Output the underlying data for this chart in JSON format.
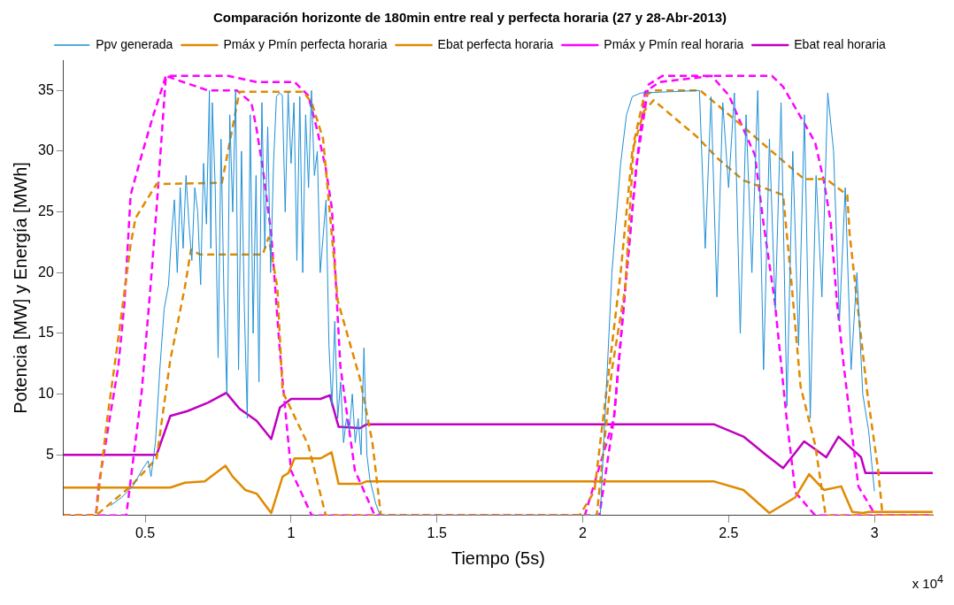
{
  "chart_data": {
    "type": "line",
    "title": "Comparación horizonte de 180min entre real y perfecta horaria (27 y 28-Abr-2013)",
    "xlabel": "Tiempo (5s)",
    "ylabel": "Potencia [MW] y Energía [MWh]",
    "annotations": [
      "x 10$^{4}$"
    ],
    "xlim": [
      0.22,
      3.2
    ],
    "ylim": [
      0,
      37.5
    ],
    "xticks": [
      0.5,
      1,
      1.5,
      2,
      2.5,
      3
    ],
    "yticks": [
      5,
      10,
      15,
      20,
      25,
      30,
      35
    ],
    "grid": false,
    "legend": "top",
    "marker": "none",
    "series": [
      {
        "name": "Ppv generada",
        "color": "#1f8fd6",
        "line_style": "solid",
        "x": [
          0.38,
          0.42,
          0.46,
          0.49,
          0.51,
          0.52,
          0.535,
          0.55,
          0.565,
          0.58,
          0.59,
          0.6,
          0.61,
          0.62,
          0.63,
          0.64,
          0.65,
          0.66,
          0.67,
          0.68,
          0.69,
          0.7,
          0.71,
          0.72,
          0.725,
          0.73,
          0.74,
          0.75,
          0.76,
          0.77,
          0.78,
          0.79,
          0.8,
          0.81,
          0.82,
          0.83,
          0.84,
          0.85,
          0.86,
          0.87,
          0.88,
          0.89,
          0.9,
          0.91,
          0.92,
          0.93,
          0.94,
          0.95,
          0.96,
          0.97,
          0.98,
          0.99,
          1.0,
          1.01,
          1.02,
          1.03,
          1.04,
          1.05,
          1.06,
          1.07,
          1.08,
          1.09,
          1.1,
          1.12,
          1.13,
          1.14,
          1.15,
          1.16,
          1.17,
          1.18,
          1.19,
          1.2,
          1.21,
          1.22,
          1.23,
          1.24,
          1.25,
          1.26,
          1.27,
          1.29,
          1.305,
          2.06,
          2.08,
          2.1,
          2.13,
          2.15,
          2.17,
          2.2,
          2.3,
          2.4,
          2.42,
          2.44,
          2.46,
          2.48,
          2.5,
          2.52,
          2.54,
          2.56,
          2.58,
          2.6,
          2.62,
          2.64,
          2.66,
          2.68,
          2.7,
          2.72,
          2.74,
          2.76,
          2.78,
          2.8,
          2.82,
          2.84,
          2.86,
          2.88,
          2.9,
          2.92,
          2.94,
          2.96,
          2.98,
          3.0
        ],
        "values": [
          0.8,
          1.5,
          2.5,
          3.8,
          4.5,
          3.2,
          6,
          12,
          17,
          19,
          23,
          26,
          20,
          27,
          22,
          28,
          24,
          21,
          27,
          25,
          19,
          29,
          24,
          35,
          22,
          34,
          27,
          13,
          31,
          18,
          10,
          33,
          25,
          35,
          12,
          30,
          17,
          8,
          33,
          15,
          28,
          11,
          34,
          22,
          32,
          20,
          29,
          34.5,
          34.8,
          34.6,
          25,
          34.9,
          29,
          34,
          21,
          34.5,
          20,
          33,
          27,
          35,
          28,
          30,
          20,
          26,
          14,
          9,
          16,
          8,
          11,
          6,
          8,
          7,
          10,
          6,
          8,
          5,
          13.8,
          5,
          3,
          1,
          0,
          0,
          10,
          20,
          29,
          33,
          34.5,
          34.8,
          34.9,
          35,
          22,
          34.5,
          18,
          34,
          27,
          34.8,
          15,
          33,
          20,
          35,
          12,
          31,
          17,
          34,
          9,
          30,
          14,
          33,
          8,
          28,
          18,
          34.8,
          30,
          16,
          27,
          12,
          20,
          10,
          7,
          2
        ]
      },
      {
        "name": "Pmáx y Pmín perfecta horaria",
        "color": "#e08a00",
        "line_style": "dashed",
        "x": [
          0.22,
          0.331,
          0.37,
          0.41,
          0.45,
          0.467,
          0.539,
          0.763,
          0.823,
          1.042,
          1.071,
          1.11,
          1.16,
          1.237,
          1.279,
          1.308,
          2.048,
          2.1,
          2.146,
          2.175,
          2.21,
          2.243,
          2.403,
          2.551,
          2.759,
          2.835,
          2.907,
          2.915,
          2.945,
          2.975,
          3.013,
          3.028,
          3.2
        ],
        "values": [
          0,
          0,
          8,
          15,
          22.3,
          24.5,
          27.3,
          27.4,
          34.9,
          34.9,
          34,
          31,
          17.7,
          11.2,
          6,
          0,
          0,
          12,
          18.8,
          30.7,
          34.5,
          35,
          35,
          32,
          27.7,
          27.7,
          26.4,
          23.2,
          16.7,
          10.2,
          3.7,
          0,
          0
        ]
      },
      {
        "color": "#e08a00",
        "line_style": "dashed",
        "x": [
          0.22,
          0.331,
          0.45,
          0.539,
          0.586,
          0.636,
          0.657,
          0.687,
          0.903,
          0.923,
          0.953,
          0.971,
          1.059,
          1.119,
          1.989,
          2.04,
          2.08,
          2.13,
          2.17,
          2.21,
          2.243,
          2.391,
          2.463,
          2.551,
          2.687,
          2.717,
          2.747,
          2.797,
          2.833,
          3.2
        ],
        "values": [
          0,
          0,
          2.4,
          4.7,
          12.8,
          18.8,
          21.9,
          21.5,
          21.5,
          22.9,
          18.8,
          10.2,
          5.8,
          0,
          0,
          2,
          10,
          20,
          30,
          33.3,
          34.2,
          31.2,
          29.4,
          27.6,
          26.4,
          18.8,
          10.6,
          5.8,
          0,
          0
        ]
      },
      {
        "name": "Ebat perfecta horaria",
        "color": "#e08a00",
        "line_style": "solid",
        "x": [
          0.22,
          0.586,
          0.636,
          0.704,
          0.775,
          0.8,
          0.843,
          0.882,
          0.932,
          0.971,
          0.991,
          1.012,
          1.101,
          1.139,
          1.163,
          1.237,
          1.258,
          2.451,
          2.551,
          2.64,
          2.729,
          2.776,
          2.827,
          2.886,
          2.924,
          2.96,
          2.98,
          3.2
        ],
        "values": [
          2.3,
          2.3,
          2.7,
          2.8,
          4.1,
          3.2,
          2.1,
          1.8,
          0.2,
          3.2,
          3.5,
          4.7,
          4.7,
          5.2,
          2.6,
          2.6,
          2.8,
          2.8,
          2.1,
          0.2,
          1.5,
          3.4,
          2.1,
          2.4,
          0.3,
          0.2,
          0.3,
          0.3
        ]
      },
      {
        "name": "Pmáx y Pmín real horaria",
        "color": "#ff00ff",
        "line_style": "dashed",
        "x": [
          0.22,
          0.331,
          0.34,
          0.408,
          0.429,
          0.45,
          0.488,
          0.527,
          0.571,
          0.784,
          0.882,
          1.012,
          1.059,
          1.089,
          1.119,
          1.14,
          1.169,
          1.219,
          1.287,
          2.007,
          2.107,
          2.146,
          2.184,
          2.226,
          2.273,
          2.649,
          2.687,
          2.767,
          2.797,
          2.827,
          2.85,
          2.871,
          2.895,
          2.945,
          3.004,
          3.2
        ],
        "values": [
          0,
          0,
          2.4,
          12.3,
          17.5,
          26.4,
          29.7,
          32.9,
          36.2,
          36.2,
          35.7,
          35.7,
          34.6,
          31.8,
          28.6,
          25.3,
          12.3,
          3.7,
          0,
          0,
          8,
          18.8,
          28.8,
          35.5,
          36.2,
          36.2,
          35.3,
          32,
          30.7,
          27.5,
          24.2,
          17.7,
          12.3,
          2.4,
          0,
          0
        ]
      },
      {
        "color": "#ff00ff",
        "line_style": "dashed",
        "x": [
          0.22,
          0.435,
          0.488,
          0.518,
          0.539,
          0.571,
          0.63,
          0.716,
          0.814,
          0.864,
          0.882,
          0.903,
          0.932,
          0.962,
          0.983,
          1.0,
          1.071,
          2.057,
          2.107,
          2.146,
          2.184,
          2.214,
          2.264,
          2.442,
          2.501,
          2.551,
          2.59,
          2.619,
          2.658,
          2.699,
          2.729,
          2.797,
          3.2
        ],
        "values": [
          0,
          0,
          10.2,
          18.8,
          25.3,
          36.2,
          35.7,
          35,
          35,
          34,
          31.8,
          28.6,
          23.2,
          13.4,
          8,
          3.7,
          0,
          0,
          8,
          18.8,
          28.8,
          34.9,
          35.7,
          36.2,
          34.6,
          31.8,
          29.7,
          24.2,
          17.7,
          8,
          1.9,
          0,
          0
        ]
      },
      {
        "name": "Ebat real horaria",
        "color": "#bf00bf",
        "line_style": "solid",
        "x": [
          0.22,
          0.539,
          0.586,
          0.645,
          0.716,
          0.778,
          0.823,
          0.882,
          0.932,
          0.962,
          1.0,
          1.101,
          1.133,
          1.163,
          1.237,
          1.258,
          2.451,
          2.551,
          2.628,
          2.687,
          2.759,
          2.835,
          2.877,
          2.954,
          2.969,
          3.2
        ],
        "values": [
          5,
          5,
          8.2,
          8.6,
          9.3,
          10.1,
          8.8,
          7.8,
          6.3,
          8.9,
          9.6,
          9.6,
          9.9,
          7.3,
          7.2,
          7.5,
          7.5,
          6.5,
          5,
          3.9,
          6.1,
          4.8,
          6.5,
          4.8,
          3.5,
          3.5
        ]
      }
    ]
  }
}
